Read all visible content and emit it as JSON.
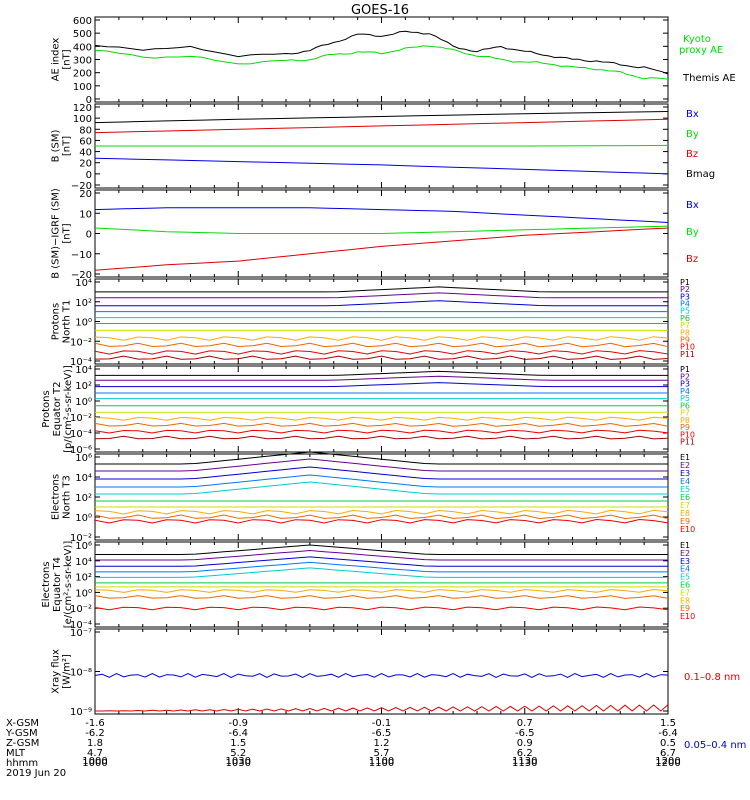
{
  "title": "GOES-16",
  "x_axis": {
    "labels": [
      "1000",
      "1030",
      "1100",
      "1130",
      "1200"
    ],
    "date": "2019 Jun 20"
  },
  "ephemeris": {
    "row_names": [
      "X-GSM",
      "Y-GSM",
      "Z-GSM",
      "MLT",
      "hhmm"
    ],
    "columns": [
      [
        "-1.6",
        "-6.2",
        "1.8",
        "4.7",
        "1000"
      ],
      [
        "-0.9",
        "-6.4",
        "1.5",
        "5.2",
        "1030"
      ],
      [
        "-0.1",
        "-6.5",
        "1.2",
        "5.7",
        "1100"
      ],
      [
        "0.7",
        "-6.5",
        "0.9",
        "6.2",
        "1130"
      ],
      [
        "1.5",
        "-6.4",
        "0.5",
        "6.7",
        "1200"
      ]
    ]
  },
  "colors": {
    "black": "#000000",
    "green": "#00dd00",
    "red": "#dd0000",
    "blue": "#0000dd",
    "e_series": [
      "#000000",
      "#6a0090",
      "#0000cc",
      "#0077ff",
      "#00cccc",
      "#00cc44",
      "#ccdd00",
      "#ffaa00",
      "#ee6600",
      "#ee0000",
      "#aa0000"
    ],
    "p_series": [
      "#000000",
      "#6a0090",
      "#0000cc",
      "#0077ff",
      "#00cccc",
      "#00cc44",
      "#ccdd00",
      "#ffaa00",
      "#ee6600",
      "#ee0000",
      "#aa0000"
    ]
  },
  "chart_data": [
    {
      "type": "line",
      "ylabel": "AE index\n[nT]",
      "yticks": [
        "600",
        "500",
        "400",
        "300",
        "200",
        "100",
        "0"
      ],
      "ylim": [
        0,
        600
      ],
      "series": [
        {
          "name": "Kyoto proxy AE",
          "color": "#00dd00",
          "x": [
            0,
            10,
            20,
            30,
            40,
            45,
            50,
            55,
            60,
            65,
            70,
            75,
            80,
            85,
            90,
            95,
            100,
            105,
            110,
            115,
            120
          ],
          "values": [
            370,
            320,
            320,
            270,
            290,
            300,
            340,
            355,
            350,
            380,
            410,
            370,
            330,
            300,
            280,
            270,
            240,
            230,
            200,
            160,
            150
          ]
        },
        {
          "name": "Themis AE",
          "color": "#000000",
          "x": [
            0,
            10,
            20,
            30,
            40,
            45,
            50,
            55,
            60,
            65,
            70,
            75,
            80,
            85,
            90,
            95,
            100,
            105,
            110,
            115,
            120
          ],
          "values": [
            400,
            380,
            390,
            330,
            340,
            370,
            430,
            490,
            480,
            510,
            500,
            400,
            360,
            400,
            360,
            330,
            300,
            290,
            260,
            240,
            190
          ]
        }
      ],
      "legend": [
        "Kyoto",
        "proxy AE",
        "Themis AE"
      ]
    },
    {
      "type": "line",
      "ylabel": "B (SM)\n[nT]",
      "yticks": [
        "120",
        "100",
        "80",
        "60",
        "40",
        "20",
        "0",
        "−20"
      ],
      "ylim": [
        -20,
        120
      ],
      "series": [
        {
          "name": "Bx",
          "color": "#0000dd",
          "x": [
            0,
            30,
            60,
            90,
            120
          ],
          "values": [
            28,
            22,
            16,
            8,
            0
          ]
        },
        {
          "name": "By",
          "color": "#00dd00",
          "x": [
            0,
            30,
            60,
            90,
            120
          ],
          "values": [
            50,
            50,
            50,
            50,
            51
          ]
        },
        {
          "name": "Bz",
          "color": "#dd0000",
          "x": [
            0,
            30,
            60,
            90,
            120
          ],
          "values": [
            74,
            80,
            86,
            92,
            98
          ]
        },
        {
          "name": "Bmag",
          "color": "#000000",
          "x": [
            0,
            30,
            60,
            90,
            120
          ],
          "values": [
            92,
            98,
            103,
            108,
            112
          ]
        }
      ],
      "legend": [
        "Bx",
        "By",
        "Bz",
        "Bmag"
      ]
    },
    {
      "type": "line",
      "ylabel": "B (SM)−IGRF (SM)\n[nT]",
      "yticks": [
        "20",
        "10",
        "0",
        "−10",
        "−20"
      ],
      "ylim": [
        -22,
        22
      ],
      "series": [
        {
          "name": "Bx",
          "color": "#0000dd",
          "x": [
            0,
            15,
            30,
            45,
            60,
            75,
            90,
            105,
            120
          ],
          "values": [
            13,
            14,
            14,
            14,
            13,
            12,
            10,
            8,
            6
          ]
        },
        {
          "name": "By",
          "color": "#00dd00",
          "x": [
            0,
            15,
            30,
            45,
            60,
            75,
            90,
            105,
            120
          ],
          "values": [
            3,
            1,
            0,
            0,
            0,
            1,
            2,
            3,
            4
          ]
        },
        {
          "name": "Bz",
          "color": "#dd0000",
          "x": [
            0,
            15,
            30,
            45,
            60,
            75,
            90,
            105,
            120
          ],
          "values": [
            -20,
            -17,
            -15,
            -11,
            -7,
            -4,
            -1,
            1,
            3
          ]
        }
      ],
      "legend": [
        "Bx",
        "By",
        "Bz"
      ]
    },
    {
      "type": "line",
      "ylabel": "Protons\nNorth T1",
      "yticks": [
        "10⁴",
        "10²",
        "10⁰",
        "10⁻²",
        "10⁻⁴"
      ],
      "ylim_log10": [
        -4,
        4
      ],
      "series_log10": [
        3.0,
        2.4,
        1.6,
        1.0,
        0.4,
        -0.2,
        -0.9,
        -1.7,
        -2.4,
        -3.1,
        -3.7
      ],
      "legend": [
        "P1",
        "P2",
        "P3",
        "P4",
        "P5",
        "P6",
        "P7",
        "P8",
        "P9",
        "P10",
        "P11"
      ]
    },
    {
      "type": "line",
      "ylabel": "Protons\nEquator T2\n[p/(cm²-s-sr-keV)]",
      "yticks": [
        "10⁴",
        "10²",
        "10⁰",
        "10⁻²",
        "10⁻⁴",
        "10⁻⁶"
      ],
      "ylim_log10": [
        -6,
        4
      ],
      "series_log10": [
        3.2,
        2.6,
        1.8,
        1.0,
        0.3,
        -0.6,
        -1.4,
        -2.2,
        -3.0,
        -3.8,
        -4.6
      ],
      "legend": [
        "P1",
        "P2",
        "P3",
        "P4",
        "P5",
        "P6",
        "P7",
        "P8",
        "P9",
        "P10",
        "P11"
      ]
    },
    {
      "type": "line",
      "ylabel": "Electrons\nNorth T3",
      "yticks": [
        "10⁶",
        "10⁴",
        "10²",
        "10⁰",
        "10⁻²"
      ],
      "ylim_log10": [
        -2,
        6
      ],
      "series_log10": [
        5.3,
        4.6,
        3.8,
        3.0,
        2.3,
        1.6,
        1.0,
        0.5,
        0.0,
        -0.4
      ],
      "legend": [
        "E1",
        "E2",
        "E3",
        "E4",
        "E5",
        "E6",
        "E7",
        "E8",
        "E9",
        "E10"
      ]
    },
    {
      "type": "line",
      "ylabel": "Electrons\nEquator T4\n[e/(cm²-s-sr-keV)]",
      "yticks": [
        "10⁶",
        "10⁴",
        "10²",
        "10⁰",
        "10⁻²",
        "10⁻⁴"
      ],
      "ylim_log10": [
        -4,
        6
      ],
      "series_log10": [
        4.8,
        4.1,
        3.3,
        2.6,
        1.9,
        1.2,
        0.7,
        0.2,
        -0.6,
        -2.0
      ],
      "legend": [
        "E1",
        "E2",
        "E3",
        "E4",
        "E5",
        "E6",
        "E7",
        "E8",
        "E9",
        "E10"
      ]
    },
    {
      "type": "line",
      "ylabel": "Xray flux\n[W/m²]",
      "yticks": [
        "10⁻⁷",
        "10⁻⁸",
        "10⁻⁹"
      ],
      "ylim_log10": [
        -9,
        -7
      ],
      "series": [
        {
          "name": "0.1–0.8 nm",
          "color": "#dd0000",
          "value_log10": -9.0
        },
        {
          "name": "0.05–0.4 nm",
          "color": "#0000dd",
          "value_log10": -8.1
        }
      ],
      "legend": [
        "0.1–0.8 nm",
        "0.05–0.4 nm"
      ]
    }
  ]
}
